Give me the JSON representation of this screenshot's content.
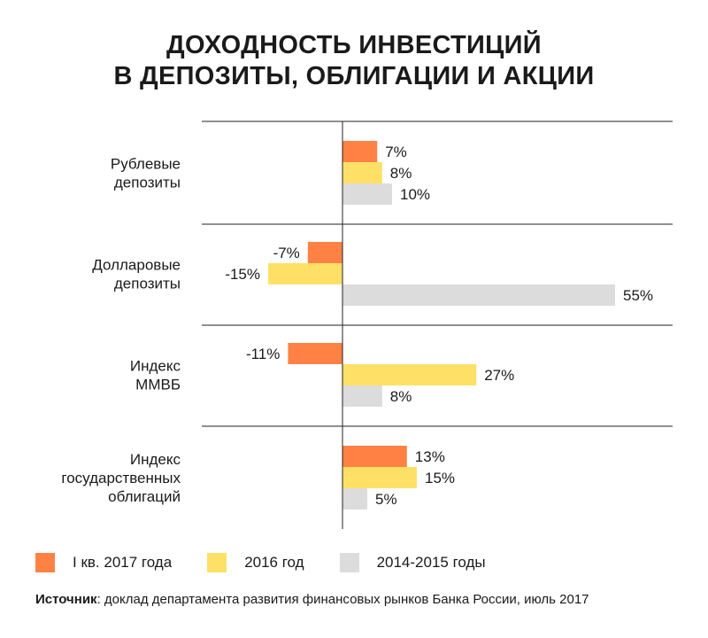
{
  "title_lines": [
    "ДОХОДНОСТЬ ИНВЕСТИЦИЙ",
    "В ДЕПОЗИТЫ, ОБЛИГАЦИИ И АКЦИИ"
  ],
  "source": {
    "label": "Источник",
    "text": ": доклад департамента  развития финансовых рынков Банка России, июль 2017"
  },
  "chart_data": {
    "type": "bar",
    "orientation": "horizontal",
    "title": "ДОХОДНОСТЬ ИНВЕСТИЦИЙ В ДЕПОЗИТЫ, ОБЛИГАЦИИ И АКЦИИ",
    "categories": [
      [
        "Рублевые",
        "депозиты"
      ],
      [
        "Долларовые",
        "депозиты"
      ],
      [
        "Индекс",
        "ММВБ"
      ],
      [
        "Индекс",
        "государственных",
        "облигаций"
      ]
    ],
    "unit": "%",
    "series": [
      {
        "name": "I кв. 2017 года",
        "color": "#FF8244",
        "values": [
          7,
          -7,
          -11,
          13
        ]
      },
      {
        "name": "2016 год",
        "color": "#FFE066",
        "values": [
          8,
          -15,
          27,
          15
        ]
      },
      {
        "name": "2014-2015 годы",
        "color": "#DCDCDC",
        "values": [
          10,
          55,
          8,
          5
        ]
      }
    ],
    "xlim": [
      -28,
      60
    ],
    "grid": false,
    "legend": "bottom"
  }
}
